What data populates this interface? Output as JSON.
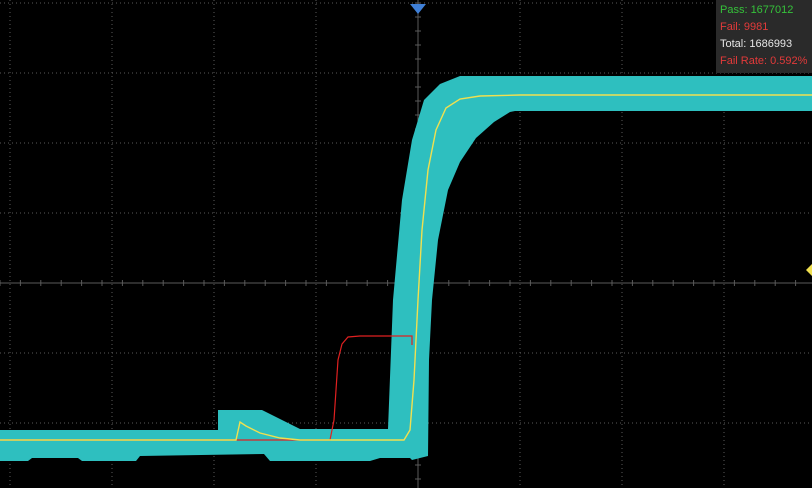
{
  "stats": {
    "pass": "Pass: 1677012",
    "fail": "Fail: 9981",
    "total": "Total: 1686993",
    "fail_rate": "Fail Rate: 0.592%"
  },
  "colors": {
    "background": "#000000",
    "grid": "#5a5a5a",
    "mask": "#2ebfbf",
    "waveform": "#f0e050",
    "failed_trace": "#e02020",
    "trigger_marker": "#3f7fd6",
    "level_marker": "#f0e050"
  },
  "icons": {
    "trigger_marker": "triangle-down-icon",
    "level_marker": "arrow-left-icon"
  }
}
